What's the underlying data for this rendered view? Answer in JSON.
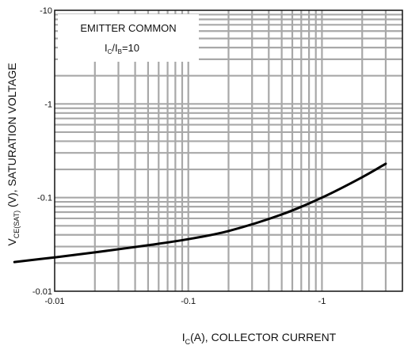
{
  "chart_data": {
    "type": "line",
    "scale": {
      "x": "log",
      "y": "log"
    },
    "xlim": [
      0.01,
      4
    ],
    "ylim": [
      0.01,
      10
    ],
    "x_ticks": [
      {
        "value": 0.01,
        "label": "-0.01"
      },
      {
        "value": 0.1,
        "label": "-0.1"
      },
      {
        "value": 1,
        "label": "-1"
      }
    ],
    "y_ticks": [
      {
        "value": 0.01,
        "label": "-0.01"
      },
      {
        "value": 0.1,
        "label": "-0.1"
      },
      {
        "value": 1,
        "label": "-1"
      },
      {
        "value": 10,
        "label": "-10"
      }
    ],
    "xlabel": {
      "main": "I",
      "sub": "C",
      "rest": "(A), COLLECTOR CURRENT"
    },
    "ylabel": {
      "main": "V",
      "sub": "CE(SAT)",
      "rest": " (V), SATURATION VOLTAGE"
    },
    "legend": {
      "line1": "EMITTER COMMON",
      "line2": {
        "a": "I",
        "a_sub": "C",
        "slash": "/I",
        "b_sub": "B",
        "rest": "=10"
      }
    },
    "grid": true,
    "series": [
      {
        "x": [
          0.005,
          0.01,
          0.02,
          0.05,
          0.1,
          0.2,
          0.5,
          1,
          2,
          3
        ],
        "y": [
          0.0205,
          0.023,
          0.026,
          0.031,
          0.036,
          0.044,
          0.066,
          0.1,
          0.165,
          0.23
        ]
      }
    ]
  }
}
